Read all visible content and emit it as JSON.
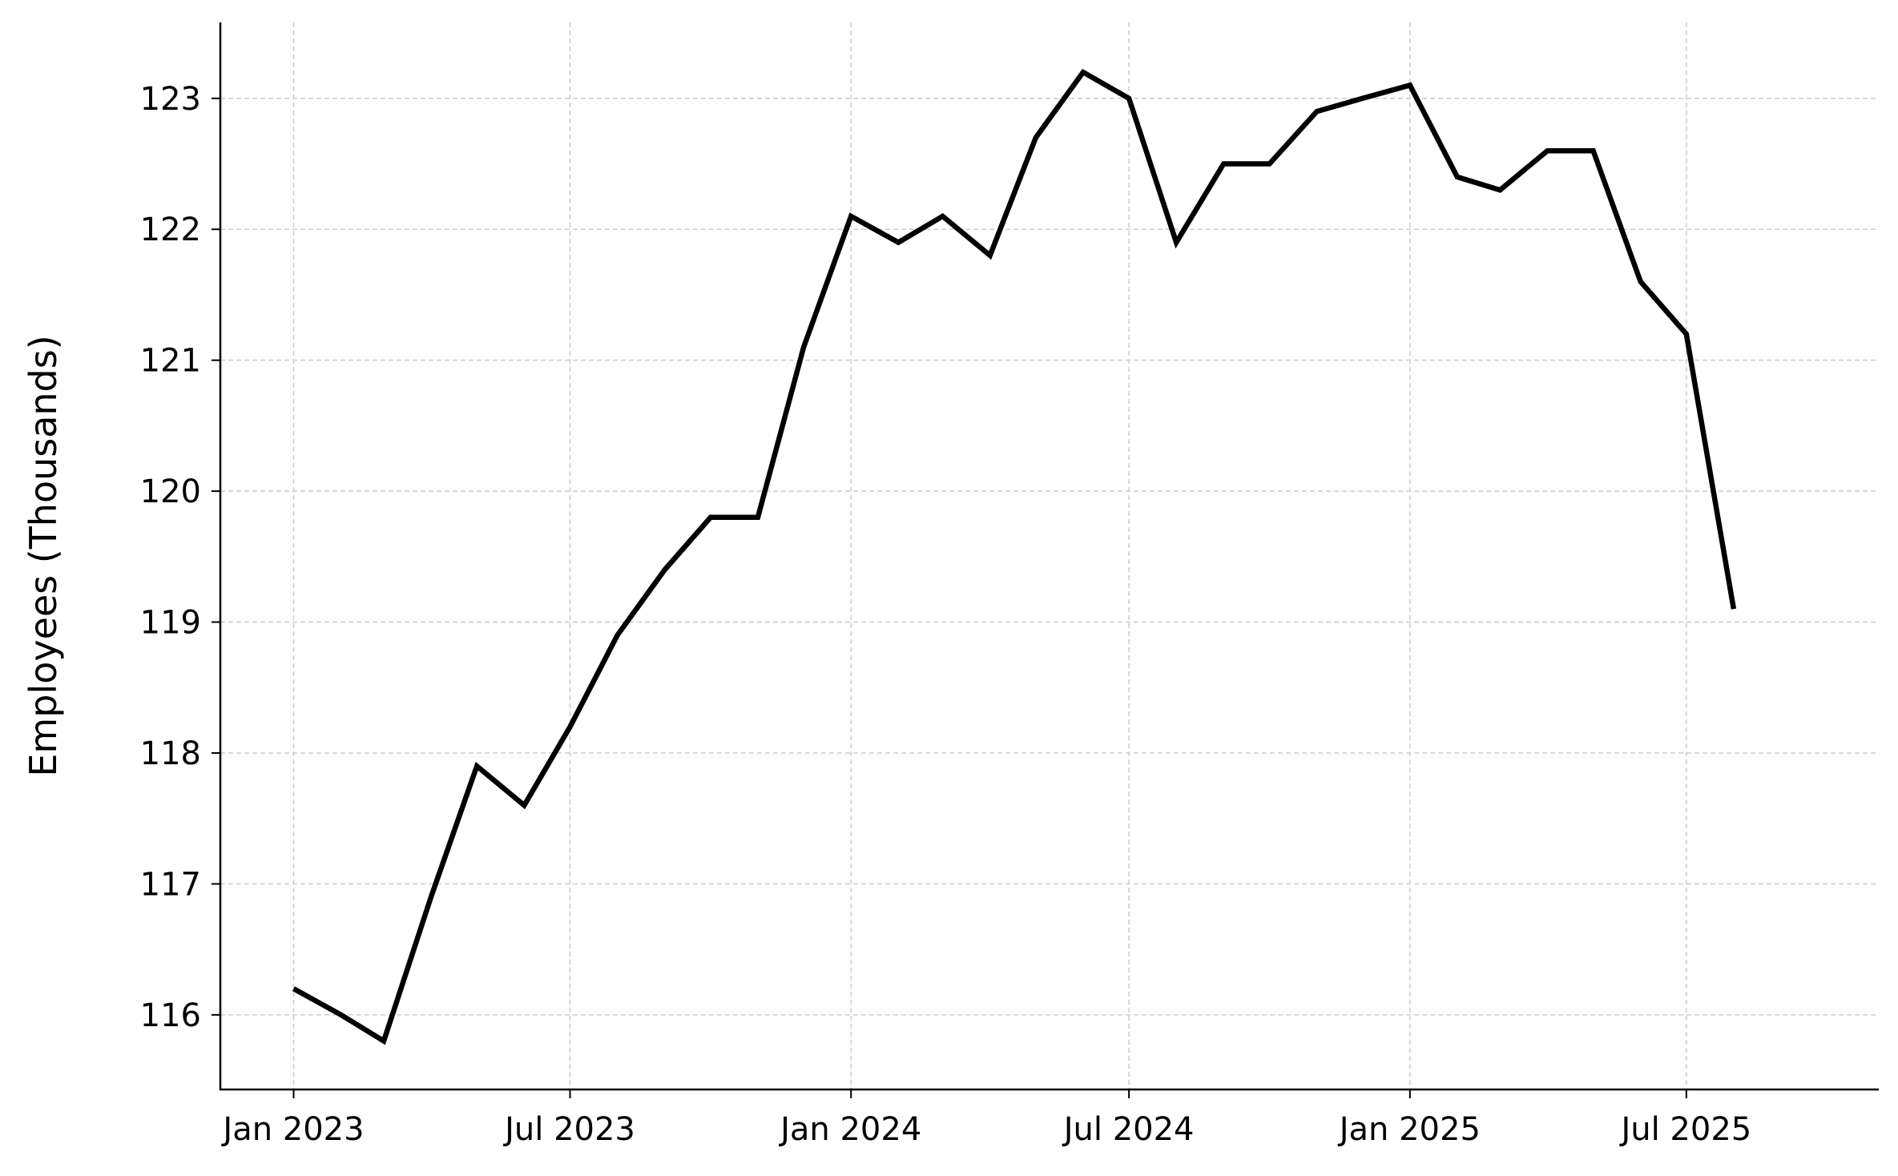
{
  "chart_data": {
    "type": "line",
    "title": "",
    "xlabel": "",
    "ylabel": "Employees (Thousands)",
    "x": [
      "2023-01",
      "2023-02",
      "2023-03",
      "2023-04",
      "2023-05",
      "2023-06",
      "2023-07",
      "2023-08",
      "2023-09",
      "2023-10",
      "2023-11",
      "2023-12",
      "2024-01",
      "2024-02",
      "2024-03",
      "2024-04",
      "2024-05",
      "2024-06",
      "2024-07",
      "2024-08",
      "2024-09",
      "2024-10",
      "2024-11",
      "2024-12",
      "2025-01",
      "2025-02",
      "2025-03",
      "2025-04",
      "2025-05",
      "2025-06",
      "2025-07",
      "2025-08"
    ],
    "series": [
      {
        "values": [
          116.2,
          116.0,
          115.8,
          116.9,
          117.9,
          117.6,
          118.2,
          118.9,
          119.4,
          119.8,
          119.8,
          121.1,
          122.1,
          121.9,
          122.1,
          121.8,
          122.7,
          123.2,
          123.0,
          121.9,
          122.5,
          122.5,
          122.9,
          123.0,
          123.1,
          122.4,
          122.3,
          122.6,
          122.6,
          121.6,
          121.2,
          119.1
        ],
        "color": "#000000"
      }
    ],
    "ylim": [
      115.43,
      123.58
    ],
    "xlim": [
      "2022-11-14",
      "2025-11-04"
    ],
    "yticks": [
      116,
      117,
      118,
      119,
      120,
      121,
      122,
      123
    ],
    "ytick_labels": [
      "116",
      "117",
      "118",
      "119",
      "120",
      "121",
      "122",
      "123"
    ],
    "xticks": [
      "2023-01-01",
      "2023-07-01",
      "2024-01-01",
      "2024-07-01",
      "2025-01-01",
      "2025-07-01"
    ],
    "xtick_labels": [
      "Jan 2023",
      "Jul 2023",
      "Jan 2024",
      "Jul 2024",
      "Jan 2025",
      "Jul 2025"
    ],
    "grid": true,
    "legend": "none"
  }
}
